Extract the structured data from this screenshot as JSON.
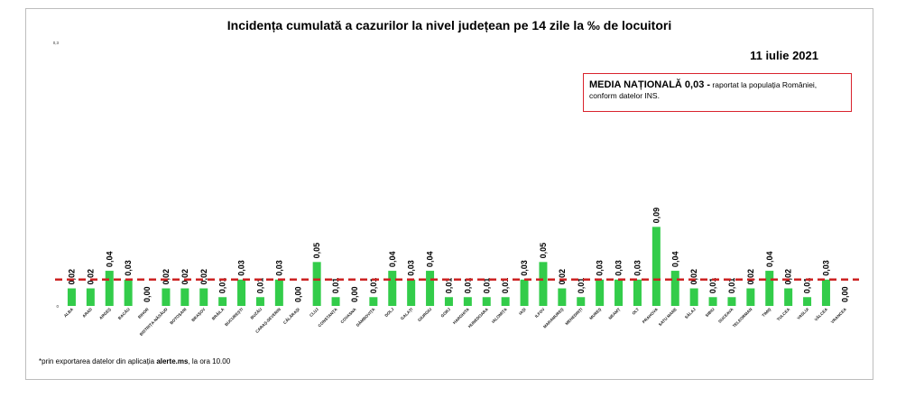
{
  "title": "Incidența cumulată a cazurilor la nivel județean pe 14 zile  la ‰ de locuitori",
  "date": "11 iulie 2021",
  "media": {
    "bold": "MEDIA NAȚIONALĂ 0,03 -",
    "rest": " raportat la populația României, conform datelor INS."
  },
  "footnote": {
    "pre": "*prin exportarea datelor din aplicația ",
    "bold": "alerte.ms",
    "post": ", la ora 10.00"
  },
  "colors": {
    "bar": "#33cc4a",
    "average": "#cc2222",
    "box_border": "#d9232d"
  },
  "chart_data": {
    "type": "bar",
    "title": "Incidența cumulată a cazurilor la nivel județean pe 14 zile  la ‰ de locuitori",
    "ylim": [
      0,
      0.3
    ],
    "y_ticks": [
      "0",
      "0,3"
    ],
    "average": 0.03,
    "categories": [
      "ALBA",
      "ARAD",
      "ARGEȘ",
      "BACĂU",
      "BIHOR",
      "BISTRIȚA-NĂSĂUD",
      "BOTOȘANI",
      "BRAȘOV",
      "BRĂILA",
      "BUCUREȘTI",
      "BUZĂU",
      "CARAȘ-SEVERIN",
      "CĂLĂRAȘI",
      "CLUJ",
      "CONSTANȚA",
      "COVASNA",
      "DÂMBOVIȚA",
      "DOLJ",
      "GALAȚI",
      "GIURGIU",
      "GORJ",
      "HARGHITA",
      "HUNEDOARA",
      "IALOMIȚA",
      "IAȘI",
      "ILFOV",
      "MARAMUREȘ",
      "MEHEDINȚI",
      "MUREȘ",
      "NEAMȚ",
      "OLT",
      "PRAHOVA",
      "SATU MARE",
      "SĂLAJ",
      "SIBIU",
      "SUCEAVA",
      "TELEORMAN",
      "TIMIȘ",
      "TULCEA",
      "VASLUI",
      "VÂLCEA",
      "VRANCEA"
    ],
    "values": [
      0.02,
      0.02,
      0.04,
      0.03,
      0.0,
      0.02,
      0.02,
      0.02,
      0.01,
      0.03,
      0.01,
      0.03,
      0.0,
      0.05,
      0.01,
      0.0,
      0.01,
      0.04,
      0.03,
      0.04,
      0.01,
      0.01,
      0.01,
      0.01,
      0.03,
      0.05,
      0.02,
      0.01,
      0.03,
      0.03,
      0.03,
      0.09,
      0.04,
      0.02,
      0.01,
      0.01,
      0.02,
      0.04,
      0.02,
      0.01,
      0.03,
      0.0
    ],
    "labels": [
      "0,02",
      "0,02",
      "0,04",
      "0,03",
      "0,00",
      "0,02",
      "0,02",
      "0,02",
      "0,01",
      "0,03",
      "0,01",
      "0,03",
      "0,00",
      "0,05",
      "0,01",
      "0,00",
      "0,01",
      "0,04",
      "0,03",
      "0,04",
      "0,01",
      "0,01",
      "0,01",
      "0,01",
      "0,03",
      "0,05",
      "0,02",
      "0,01",
      "0,03",
      "0,03",
      "0,03",
      "0,09",
      "0,04",
      "0,02",
      "0,01",
      "0,01",
      "0,02",
      "0,04",
      "0,02",
      "0,01",
      "0,03",
      "0,00"
    ]
  }
}
